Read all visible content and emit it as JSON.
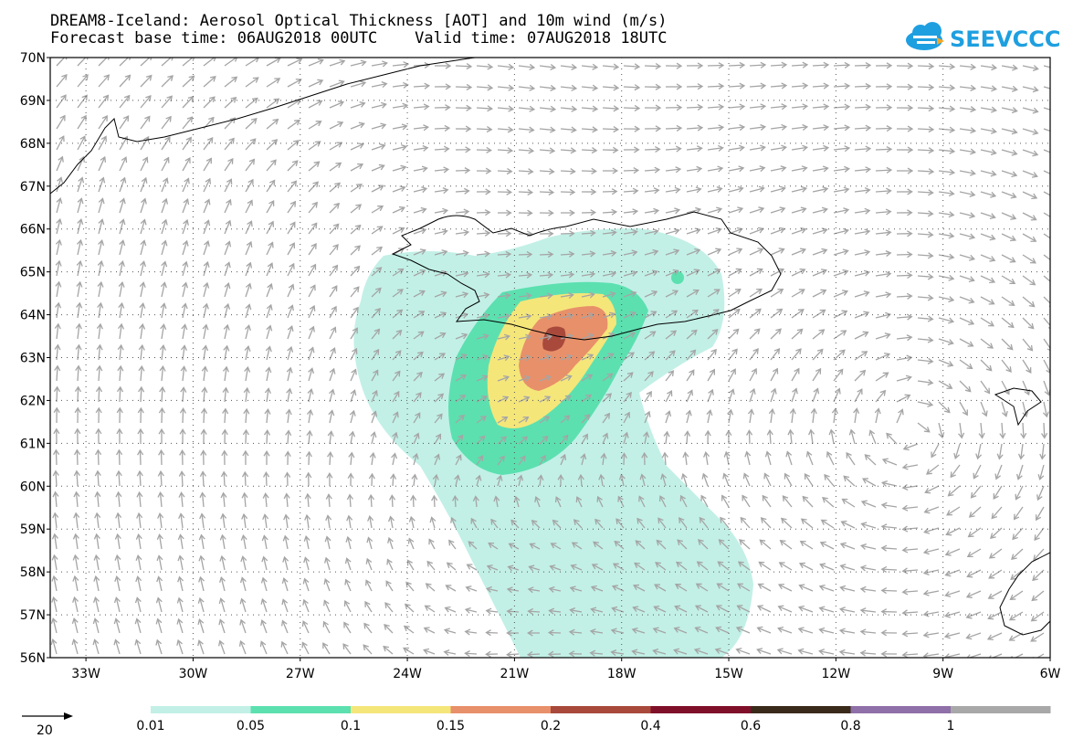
{
  "title": {
    "line1": "DREAM8-Iceland: Aerosol Optical Thickness [AOT] and 10m wind (m/s)",
    "line2": "Forecast base time: 06AUG2018 00UTC    Valid time: 07AUG2018 18UTC"
  },
  "logo": {
    "text": "SEEVCCC",
    "color": "#1e9fe0",
    "icon": "cloud-icon"
  },
  "map": {
    "lat_labels": [
      "70N",
      "69N",
      "68N",
      "67N",
      "66N",
      "65N",
      "64N",
      "63N",
      "62N",
      "61N",
      "60N",
      "59N",
      "58N",
      "57N",
      "56N"
    ],
    "lon_labels": [
      "33W",
      "30W",
      "27W",
      "24W",
      "21W",
      "18W",
      "15W",
      "12W",
      "9W",
      "6W"
    ],
    "lat_range": [
      56,
      70
    ],
    "lon_range": [
      -34,
      -6
    ],
    "grid": true
  },
  "legend": {
    "reference_vector_label": "20",
    "bins": [
      {
        "color": "#c2f0e6",
        "label": "0.01"
      },
      {
        "color": "#5ce0b0",
        "label": "0.05"
      },
      {
        "color": "#f5e67a",
        "label": "0.1"
      },
      {
        "color": "#e8906a",
        "label": "0.15"
      },
      {
        "color": "#a8493c",
        "label": "0.2"
      },
      {
        "color": "#80102a",
        "label": "0.4"
      },
      {
        "color": "#3a2a1a",
        "label": "0.6"
      },
      {
        "color": "#9070a8",
        "label": "0.8"
      },
      {
        "color": "#a8a8a8",
        "label": "1"
      }
    ]
  },
  "colors": {
    "vector": "#a5a5a5",
    "coast": "#000000",
    "grid": "#555555"
  }
}
